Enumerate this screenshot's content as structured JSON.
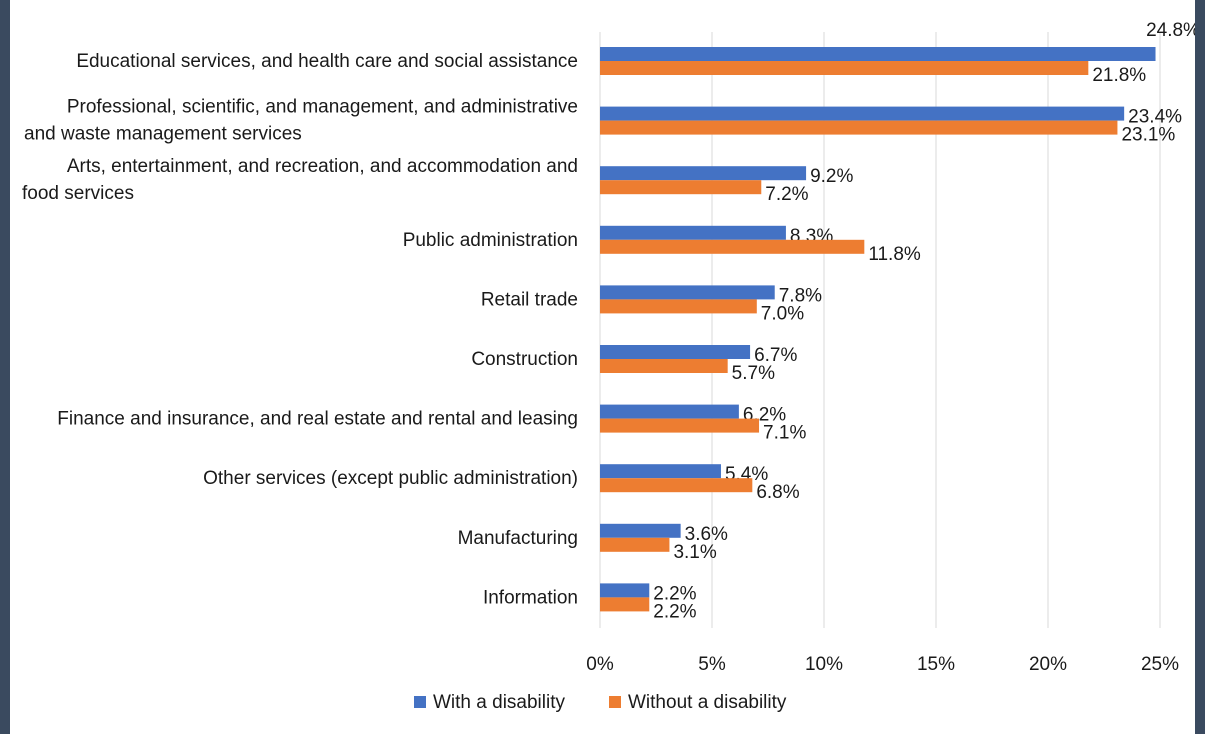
{
  "chart_data": {
    "type": "bar",
    "orientation": "horizontal",
    "title": "",
    "xlabel": "",
    "ylabel": "",
    "xlim": [
      0,
      25
    ],
    "x_ticks": [
      "0%",
      "5%",
      "10%",
      "15%",
      "20%",
      "25%"
    ],
    "x_tick_values": [
      0,
      5,
      10,
      15,
      20,
      25
    ],
    "grid": "vertical",
    "legend_position": "bottom",
    "categories": [
      "Educational services, and health care and social assistance",
      "Professional, scientific, and management, and administrative and waste management services",
      "Arts, entertainment, and recreation, and accommodation and food services",
      "Public administration",
      "Retail trade",
      "Construction",
      "Finance and insurance, and real estate and rental and leasing",
      "Other services (except public administration)",
      "Manufacturing",
      "Information"
    ],
    "category_lines": [
      [
        "Educational services, and health care and social assistance"
      ],
      [
        "Professional, scientific, and management, and administrative",
        "and waste management services"
      ],
      [
        "Arts, entertainment, and recreation, and accommodation and",
        "food services"
      ],
      [
        "Public administration"
      ],
      [
        "Retail trade"
      ],
      [
        "Construction"
      ],
      [
        "Finance and insurance, and real estate and rental and leasing"
      ],
      [
        "Other services (except public administration)"
      ],
      [
        "Manufacturing"
      ],
      [
        "Information"
      ]
    ],
    "series": [
      {
        "name": "With a disability",
        "color": "#4472c4",
        "values": [
          24.8,
          23.4,
          9.2,
          8.3,
          7.8,
          6.7,
          6.2,
          5.4,
          3.6,
          2.2
        ],
        "labels": [
          "24.8%",
          "23.4%",
          "9.2%",
          "8.3%",
          "7.8%",
          "6.7%",
          "6.2%",
          "5.4%",
          "3.6%",
          "2.2%"
        ]
      },
      {
        "name": "Without a disability",
        "color": "#ed7d31",
        "values": [
          21.8,
          23.1,
          7.2,
          11.8,
          7.0,
          5.7,
          7.1,
          6.8,
          3.1,
          2.2
        ],
        "labels": [
          "21.8%",
          "23.1%",
          "7.2%",
          "11.8%",
          "7.0%",
          "5.7%",
          "7.1%",
          "6.8%",
          "3.1%",
          "2.2%"
        ]
      }
    ]
  }
}
